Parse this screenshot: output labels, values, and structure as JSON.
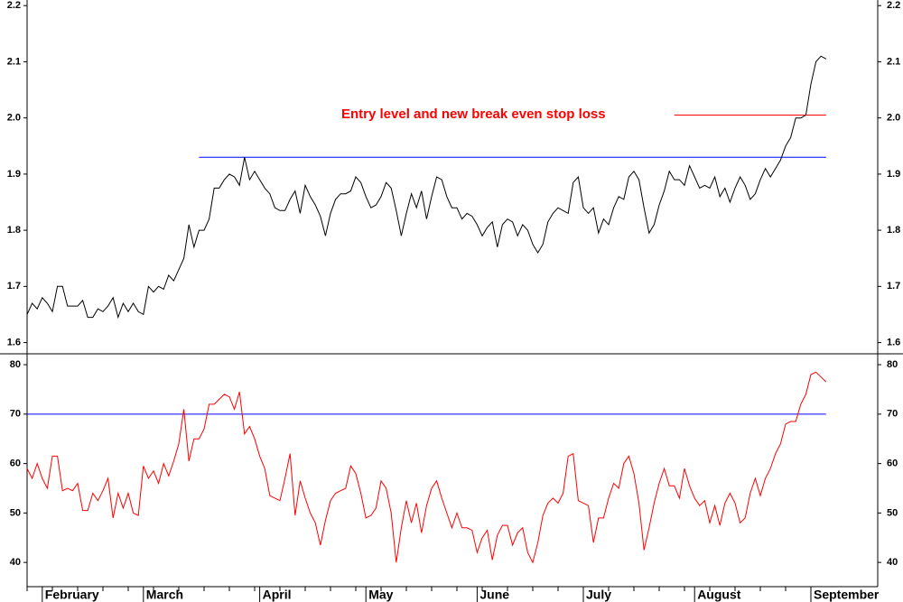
{
  "chart_data": [
    {
      "type": "line",
      "annotation": "Entry level and new break even stop loss",
      "series": [
        {
          "color": "#000000",
          "values": [
            1.65,
            1.67,
            1.66,
            1.68,
            1.67,
            1.655,
            1.7,
            1.7,
            1.665,
            1.665,
            1.665,
            1.675,
            1.645,
            1.645,
            1.66,
            1.655,
            1.665,
            1.68,
            1.645,
            1.67,
            1.655,
            1.67,
            1.655,
            1.65,
            1.7,
            1.69,
            1.7,
            1.695,
            1.72,
            1.71,
            1.73,
            1.75,
            1.81,
            1.77,
            1.8,
            1.8,
            1.82,
            1.875,
            1.875,
            1.89,
            1.9,
            1.895,
            1.88,
            1.93,
            1.89,
            1.905,
            1.89,
            1.875,
            1.865,
            1.84,
            1.835,
            1.835,
            1.855,
            1.87,
            1.83,
            1.88,
            1.86,
            1.845,
            1.825,
            1.79,
            1.83,
            1.855,
            1.865,
            1.865,
            1.87,
            1.895,
            1.885,
            1.86,
            1.84,
            1.845,
            1.86,
            1.885,
            1.875,
            1.835,
            1.79,
            1.83,
            1.865,
            1.84,
            1.87,
            1.82,
            1.86,
            1.895,
            1.89,
            1.86,
            1.84,
            1.84,
            1.82,
            1.83,
            1.825,
            1.81,
            1.79,
            1.805,
            1.815,
            1.77,
            1.81,
            1.82,
            1.815,
            1.79,
            1.81,
            1.8,
            1.775,
            1.76,
            1.775,
            1.815,
            1.83,
            1.84,
            1.835,
            1.83,
            1.885,
            1.895,
            1.84,
            1.83,
            1.84,
            1.795,
            1.82,
            1.81,
            1.84,
            1.86,
            1.855,
            1.895,
            1.905,
            1.89,
            1.84,
            1.795,
            1.81,
            1.845,
            1.87,
            1.905,
            1.89,
            1.89,
            1.88,
            1.915,
            1.895,
            1.875,
            1.88,
            1.875,
            1.895,
            1.86,
            1.875,
            1.85,
            1.875,
            1.895,
            1.88,
            1.855,
            1.865,
            1.89,
            1.91,
            1.895,
            1.91,
            1.925,
            1.95,
            1.965,
            2.0,
            2.0,
            2.005,
            2.06,
            2.1,
            2.11,
            2.105
          ]
        }
      ],
      "hlines": [
        {
          "value": 1.93,
          "color": "#0000ff",
          "start": 34,
          "end": 158
        },
        {
          "value": 2.005,
          "color": "#ff0000",
          "start": 128,
          "end": 158
        }
      ],
      "ylim": [
        1.58,
        2.21
      ],
      "yticks": [
        1.6,
        1.7,
        1.8,
        1.9,
        {
          "value": 2,
          "label": "2.0"
        },
        2.1,
        2.2
      ]
    },
    {
      "type": "line",
      "series": [
        {
          "color": "#ff0000",
          "values": [
            59,
            57,
            60,
            57,
            55,
            61.5,
            61.5,
            54.5,
            55,
            54.5,
            56,
            50.5,
            50.5,
            54,
            52.5,
            54.5,
            57,
            49,
            54,
            51,
            54,
            50,
            49.5,
            59.5,
            57,
            58.5,
            56,
            60,
            57.5,
            60.5,
            64,
            71,
            60.5,
            65,
            65,
            67,
            72,
            72,
            73,
            74,
            73.5,
            71,
            74.5,
            66,
            67.5,
            65,
            61.5,
            59,
            53.5,
            53,
            52.5,
            57,
            62,
            49.5,
            56.5,
            53,
            50,
            48,
            43.5,
            48.5,
            52.5,
            54,
            54.5,
            55,
            59.5,
            58,
            54,
            49,
            49.5,
            51,
            56.5,
            55,
            50,
            40,
            47,
            52.5,
            48,
            52,
            46,
            51.5,
            55,
            56.5,
            53,
            50,
            47,
            50,
            47,
            47,
            46.5,
            42,
            45,
            46.5,
            40.5,
            45.5,
            47.5,
            47.5,
            43.5,
            46,
            47,
            42,
            40,
            44,
            49.5,
            52,
            53,
            52,
            54,
            61.5,
            62,
            52.5,
            52,
            51.5,
            44,
            49,
            49,
            53,
            56,
            55,
            60,
            61.5,
            58,
            52,
            42.5,
            47,
            52,
            56,
            59,
            55.5,
            55.5,
            53,
            59,
            55.5,
            53,
            51.5,
            52.5,
            48,
            51.5,
            47.5,
            52,
            54,
            52,
            48,
            49,
            54,
            57,
            53.5,
            57,
            59,
            62,
            64,
            68,
            68.5,
            68.5,
            72,
            74,
            78,
            78.5,
            77.5,
            76.5
          ]
        }
      ],
      "hlines": [
        {
          "value": 70,
          "color": "#0000ff",
          "start": 0,
          "end": 158
        }
      ],
      "ylim": [
        35.1,
        82.2
      ],
      "yticks": [
        40,
        50,
        60,
        70,
        80
      ],
      "xticks": [
        {
          "value": 3,
          "label": "February"
        },
        {
          "value": 23,
          "label": "March"
        },
        {
          "value": 46,
          "label": "April"
        },
        {
          "value": 67,
          "label": "May"
        },
        {
          "value": 89,
          "label": "June"
        },
        {
          "value": 110,
          "label": "July"
        },
        {
          "value": 132,
          "label": "August"
        },
        {
          "value": 155,
          "label": "September"
        }
      ]
    }
  ]
}
